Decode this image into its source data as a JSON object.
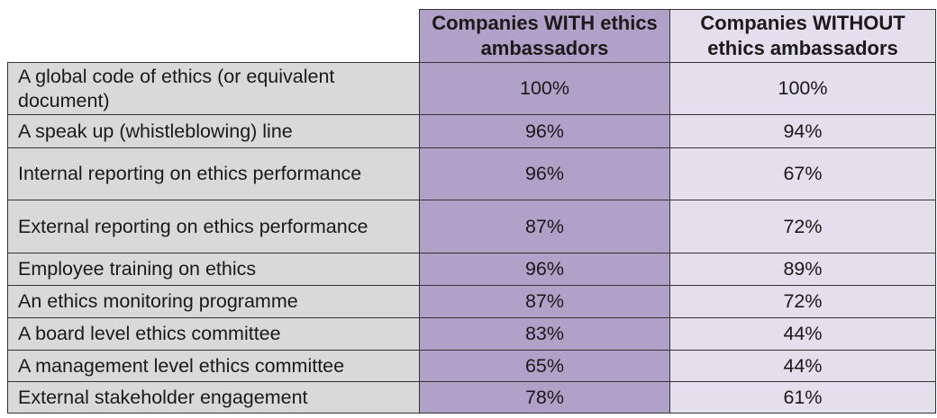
{
  "chart_data": {
    "type": "table",
    "columns": [
      "Companies WITH ethics ambassadors",
      "Companies WITHOUT ethics ambassadors"
    ],
    "rows": [
      {
        "label": "A global code of ethics (or equivalent document)",
        "with": "100%",
        "without": "100%"
      },
      {
        "label": "A speak up (whistleblowing) line",
        "with": "96%",
        "without": "94%"
      },
      {
        "label": "Internal reporting on ethics performance",
        "with": "96%",
        "without": "67%"
      },
      {
        "label": "External reporting on ethics performance",
        "with": "87%",
        "without": "72%"
      },
      {
        "label": "Employee training on ethics",
        "with": "96%",
        "without": "89%"
      },
      {
        "label": "An ethics monitoring programme",
        "with": "87%",
        "without": "72%"
      },
      {
        "label": "A board level ethics committee",
        "with": "83%",
        "without": "44%"
      },
      {
        "label": "A management level ethics committee",
        "with": "65%",
        "without": "44%"
      },
      {
        "label": "External stakeholder engagement",
        "with": "78%",
        "without": "61%"
      }
    ],
    "colors": {
      "with": "#b1a0c7",
      "without": "#e4dfec",
      "label": "#d9d9d9"
    }
  }
}
